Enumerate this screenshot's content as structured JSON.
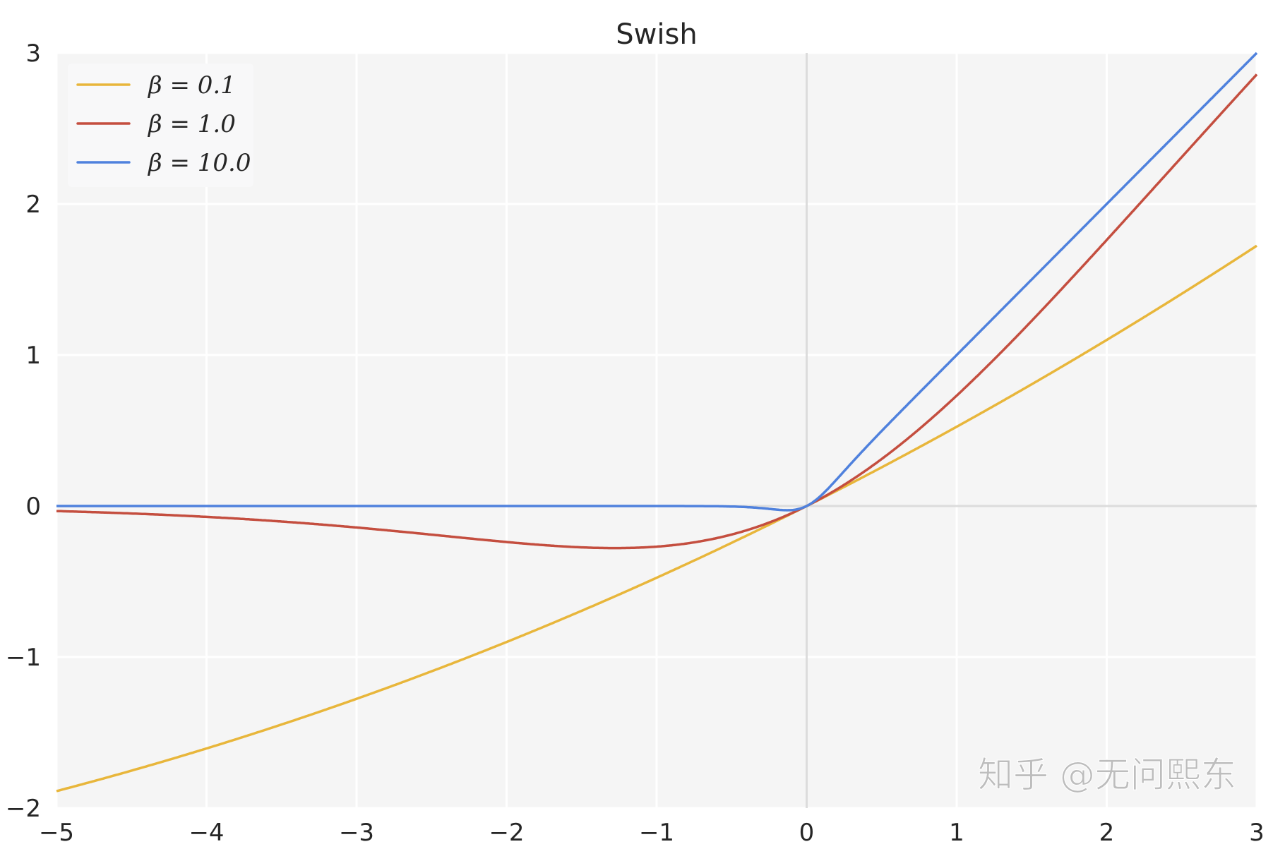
{
  "chart_data": {
    "type": "line",
    "title": "Swish",
    "xlabel": "",
    "ylabel": "",
    "xlim": [
      -5,
      3
    ],
    "ylim": [
      -2,
      3
    ],
    "xticks": [
      "−5",
      "−4",
      "−3",
      "−2",
      "−1",
      "0",
      "1",
      "2",
      "3"
    ],
    "yticks": [
      "−2",
      "−1",
      "0",
      "1",
      "2",
      "3"
    ],
    "xtick_values": [
      -5,
      -4,
      -3,
      -2,
      -1,
      0,
      1,
      2,
      3
    ],
    "ytick_values": [
      -2,
      -1,
      0,
      1,
      2,
      3
    ],
    "grid": true,
    "legend_position": "top-left",
    "function": "x * sigmoid(beta * x)",
    "series": [
      {
        "name": "β = 0.1",
        "beta": 0.1,
        "color": "#e8b63b"
      },
      {
        "name": "β = 1.0",
        "beta": 1.0,
        "color": "#c44e3f"
      },
      {
        "name": "β = 10.0",
        "beta": 10.0,
        "color": "#4f81dd"
      }
    ]
  },
  "watermark": "知乎 @无问熙东"
}
